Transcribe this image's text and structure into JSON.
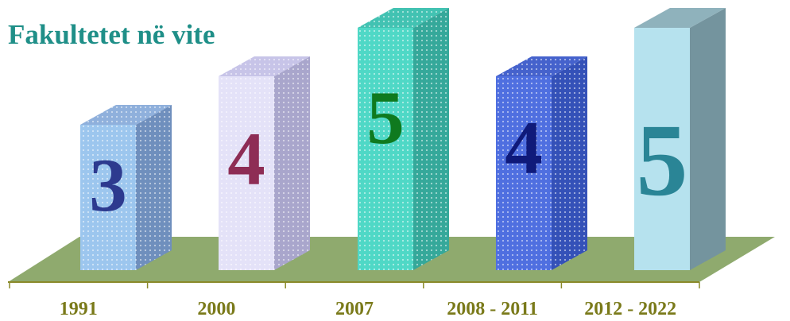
{
  "chart_data": {
    "type": "bar",
    "title": "Fakultetet në vite",
    "categories": [
      "1991",
      "2000",
      "2007",
      "2008 - 2011",
      "2012 - 2022"
    ],
    "values": [
      3,
      4,
      5,
      4,
      5
    ],
    "data_labels": [
      "3",
      "4",
      "5",
      "4",
      "5"
    ],
    "xlabel": "",
    "ylabel": "",
    "style": "3d-column",
    "grid": false,
    "colors": {
      "title": "#1f8f88",
      "category_label": "#7a7a1a",
      "floor": "#8faa6e",
      "bars": [
        {
          "front": "#9cc6ee",
          "side": "#6f8fbd",
          "top": "#8fb0dc",
          "label": "#2d3a8f"
        },
        {
          "front": "#e4e2f8",
          "side": "#a9a6cc",
          "top": "#c7c4e8",
          "label": "#8e2d55"
        },
        {
          "front": "#4fd8c6",
          "side": "#35a89a",
          "top": "#42c2b2",
          "label": "#0f7a1f"
        },
        {
          "front": "#4f6fe0",
          "side": "#3451b8",
          "top": "#4562cc",
          "label": "#0f1a7a"
        },
        {
          "front": "#b6e2ee",
          "side": "#74949e",
          "top": "#8fb2bc",
          "label": "#2a8596"
        }
      ]
    }
  }
}
